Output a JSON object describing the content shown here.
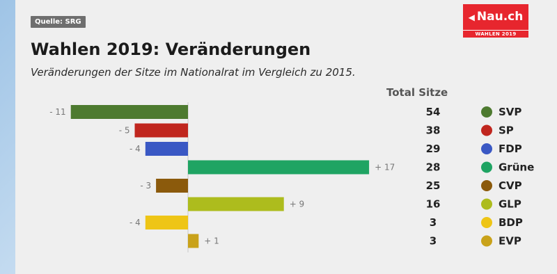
{
  "source": "Quelle: SRG",
  "logo": {
    "name": "Nau.ch",
    "subtitle": "WAHLEN 2019",
    "color": "#e7262e"
  },
  "title": "Wahlen 2019: Veränderungen",
  "subtitle": "Veränderungen der Sitze im Nationalrat im Vergleich zu 2015.",
  "total_header": "Total Sitze",
  "chart_data": {
    "type": "bar",
    "orientation": "horizontal",
    "categories": [
      "SVP",
      "SP",
      "FDP",
      "Grüne",
      "CVP",
      "GLP",
      "BDP",
      "EVP"
    ],
    "values": [
      -11,
      -5,
      -4,
      17,
      -3,
      9,
      -4,
      1
    ],
    "value_labels": [
      "- 11",
      "- 5",
      "- 4",
      "+ 17",
      "- 3",
      "+ 9",
      "- 4",
      "+ 1"
    ],
    "totals": [
      54,
      38,
      29,
      28,
      25,
      16,
      3,
      3
    ],
    "colors": [
      "#4d7a2f",
      "#c0261e",
      "#3a58c4",
      "#1fa463",
      "#8b5a0c",
      "#adbc1d",
      "#eec516",
      "#c9a21a"
    ],
    "legend": "right",
    "grid": false,
    "xlim": [
      -11,
      17
    ]
  }
}
